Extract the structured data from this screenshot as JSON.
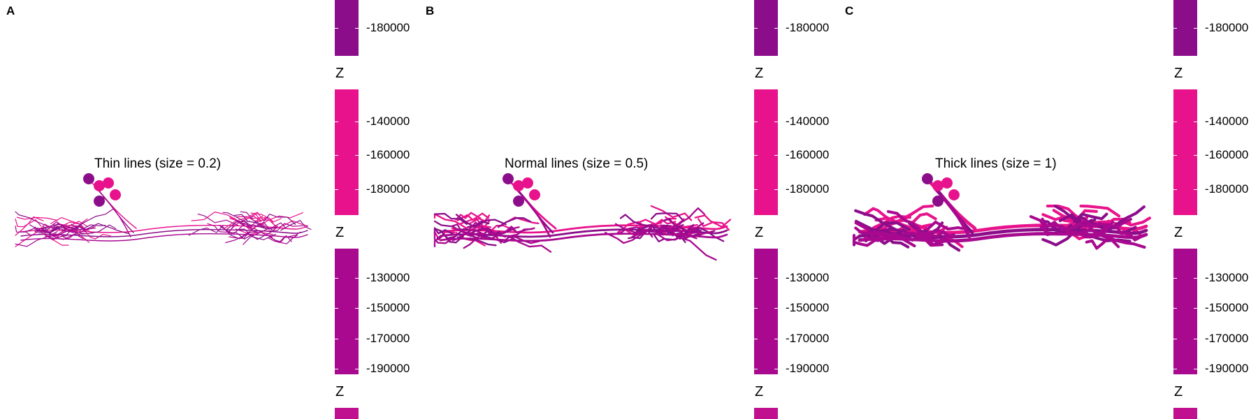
{
  "colors": {
    "pink": "#e8138c",
    "purple": "#8b0d8a",
    "magenta": "#a8098f",
    "mid": "#c01090"
  },
  "panels": [
    {
      "label": "A",
      "title": "Thin lines (size = 0.2)",
      "line_size": 0.2,
      "legends": [
        {
          "title": "",
          "color": "#8b0d8a",
          "ticks": [
            "-180000"
          ]
        },
        {
          "title": "Z",
          "color": "#e8138c",
          "ticks": [
            "-140000",
            "-160000",
            "-180000"
          ]
        },
        {
          "title": "Z",
          "color": "#a8098f",
          "ticks": [
            "-130000",
            "-150000",
            "-170000",
            "-190000"
          ]
        },
        {
          "title": "Z",
          "color": "#c01090",
          "ticks": []
        }
      ]
    },
    {
      "label": "B",
      "title": "Normal lines (size = 0.5)",
      "line_size": 0.5,
      "legends": [
        {
          "title": "",
          "color": "#8b0d8a",
          "ticks": [
            "-180000"
          ]
        },
        {
          "title": "Z",
          "color": "#e8138c",
          "ticks": [
            "-140000",
            "-160000",
            "-180000"
          ]
        },
        {
          "title": "Z",
          "color": "#a8098f",
          "ticks": [
            "-130000",
            "-150000",
            "-170000",
            "-190000"
          ]
        },
        {
          "title": "Z",
          "color": "#c01090",
          "ticks": []
        }
      ]
    },
    {
      "label": "C",
      "title": "Thick lines (size = 1)",
      "line_size": 1,
      "legends": [
        {
          "title": "",
          "color": "#8b0d8a",
          "ticks": [
            "-180000"
          ]
        },
        {
          "title": "Z",
          "color": "#e8138c",
          "ticks": [
            "-140000",
            "-160000",
            "-180000"
          ]
        },
        {
          "title": "Z",
          "color": "#a8098f",
          "ticks": [
            "-130000",
            "-150000",
            "-170000",
            "-190000"
          ]
        },
        {
          "title": "Z",
          "color": "#c01090",
          "ticks": []
        }
      ]
    }
  ],
  "chart_data": [
    {
      "type": "neuron-morphology",
      "title": "Thin lines (size = 0.2)",
      "line_size": 0.2,
      "legend_title": "Z",
      "neuron_colors": [
        "#e8138c",
        "#8b0d8a",
        "#a8098f"
      ],
      "soma_count": 4
    },
    {
      "type": "neuron-morphology",
      "title": "Normal lines (size = 0.5)",
      "line_size": 0.5,
      "legend_title": "Z",
      "neuron_colors": [
        "#e8138c",
        "#8b0d8a",
        "#a8098f"
      ],
      "soma_count": 4
    },
    {
      "type": "neuron-morphology",
      "title": "Thick lines (size = 1)",
      "line_size": 1,
      "legend_title": "Z",
      "neuron_colors": [
        "#e8138c",
        "#8b0d8a",
        "#a8098f"
      ],
      "soma_count": 4
    }
  ]
}
